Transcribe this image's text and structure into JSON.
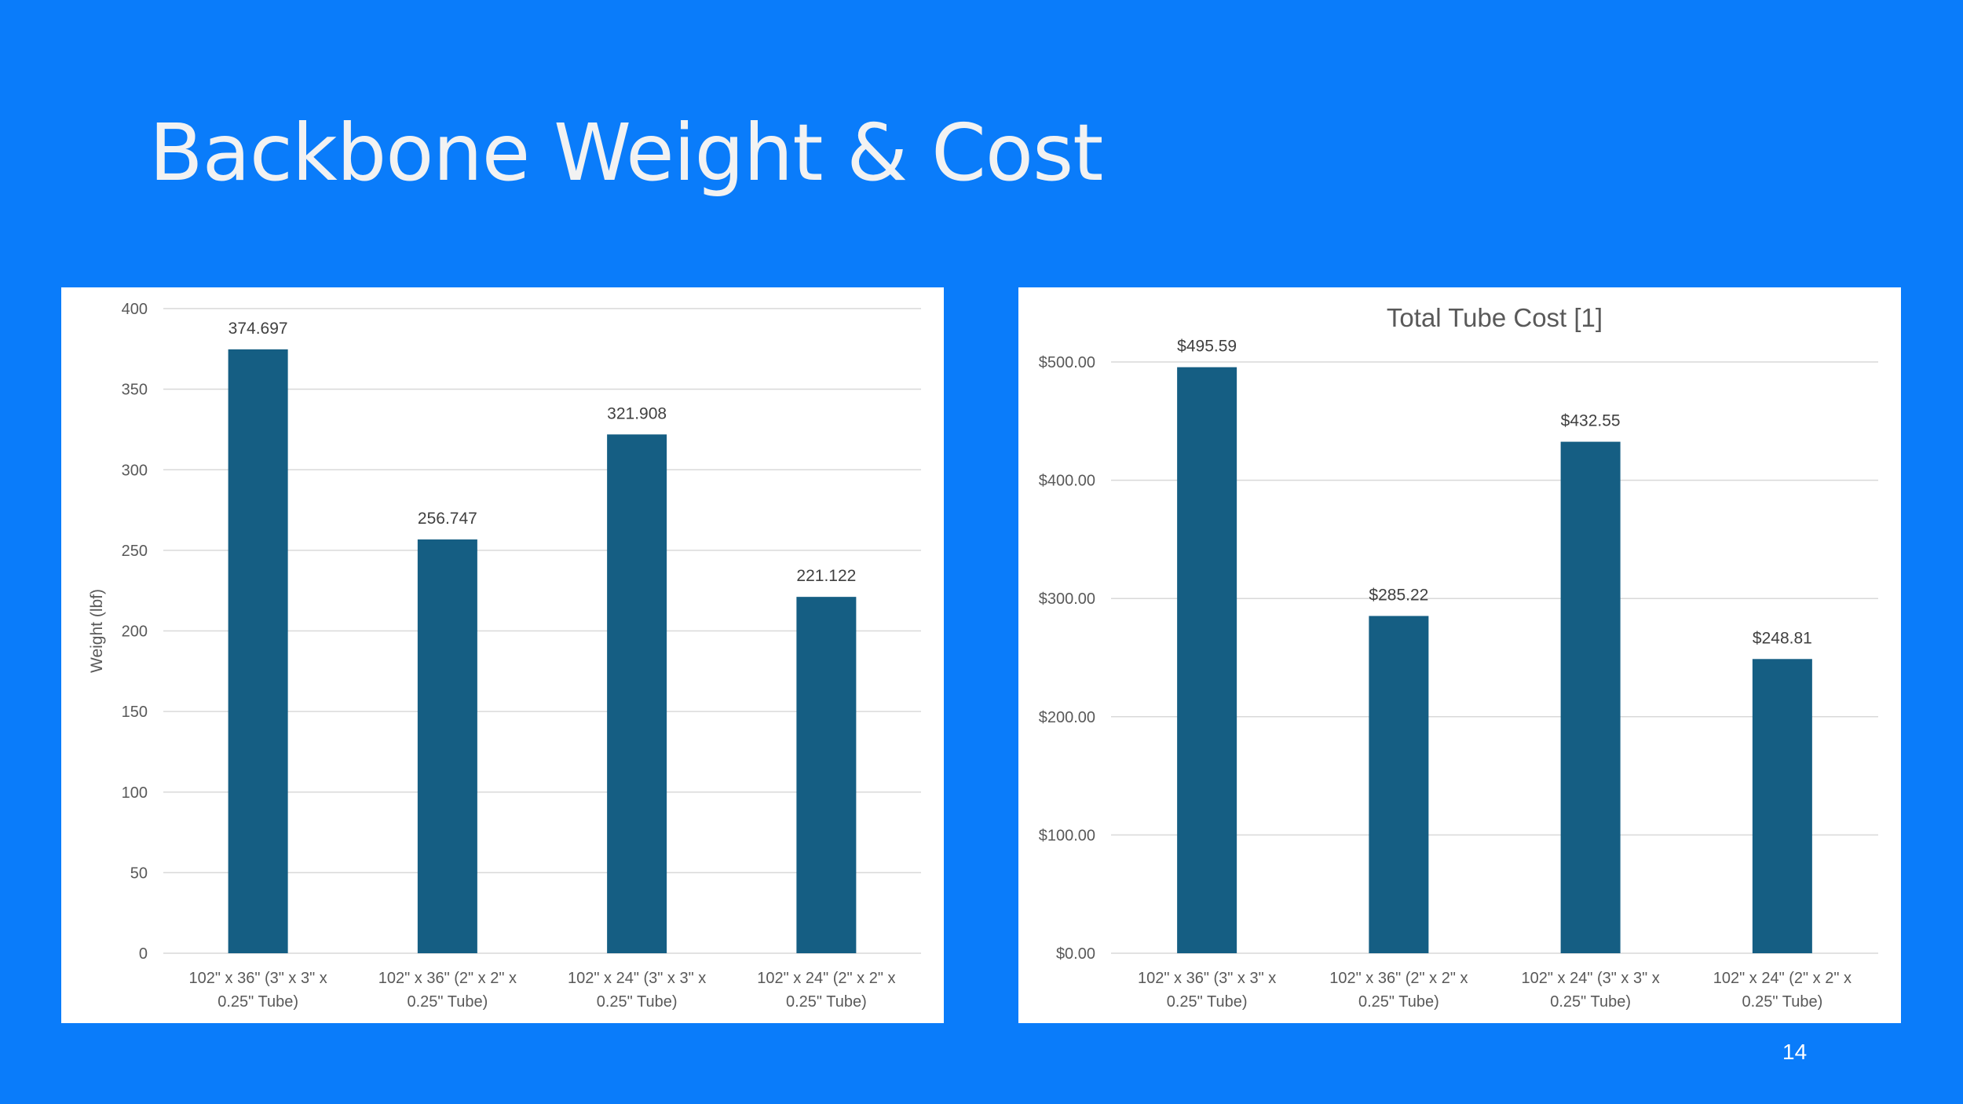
{
  "slide": {
    "title": "Backbone Weight & Cost",
    "page_number": "14"
  },
  "colors": {
    "background": "#0a7cfa",
    "bar": "#155e83",
    "gridline": "#d9d9d9",
    "text": "#595959"
  },
  "chart_data": [
    {
      "type": "bar",
      "title": "",
      "xlabel": "",
      "ylabel": "Weight (lbf)",
      "categories": [
        [
          "102\" x 36\" (3\" x 3\" x",
          "0.25\" Tube)"
        ],
        [
          "102\" x 36\" (2\" x 2\" x",
          "0.25\" Tube)"
        ],
        [
          "102\" x 24\" (3\" x 3\" x",
          "0.25\" Tube)"
        ],
        [
          "102\" x 24\" (2\" x 2\" x",
          "0.25\" Tube)"
        ]
      ],
      "values": [
        374.697,
        256.747,
        321.908,
        221.122
      ],
      "value_labels": [
        "374.697",
        "256.747",
        "321.908",
        "221.122"
      ],
      "ylim": [
        0,
        400
      ],
      "yticks": [
        0,
        50,
        100,
        150,
        200,
        250,
        300,
        350,
        400
      ],
      "ytick_labels": [
        "0",
        "50",
        "100",
        "150",
        "200",
        "250",
        "300",
        "350",
        "400"
      ],
      "grid": true,
      "legend": "none"
    },
    {
      "type": "bar",
      "title": "Total Tube Cost [1]",
      "xlabel": "",
      "ylabel": "",
      "categories": [
        [
          "102\" x 36\" (3\" x 3\" x",
          "0.25\" Tube)"
        ],
        [
          "102\" x 36\" (2\" x 2\" x",
          "0.25\" Tube)"
        ],
        [
          "102\" x 24\" (3\" x 3\" x",
          "0.25\" Tube)"
        ],
        [
          "102\" x 24\" (2\" x 2\" x",
          "0.25\" Tube)"
        ]
      ],
      "values": [
        495.59,
        285.22,
        432.55,
        248.81
      ],
      "value_labels": [
        "$495.59",
        "$285.22",
        "$432.55",
        "$248.81"
      ],
      "ylim": [
        0,
        500
      ],
      "yticks": [
        0,
        100,
        200,
        300,
        400,
        500
      ],
      "ytick_labels": [
        "$0.00",
        "$100.00",
        "$200.00",
        "$300.00",
        "$400.00",
        "$500.00"
      ],
      "grid": true,
      "legend": "none"
    }
  ]
}
